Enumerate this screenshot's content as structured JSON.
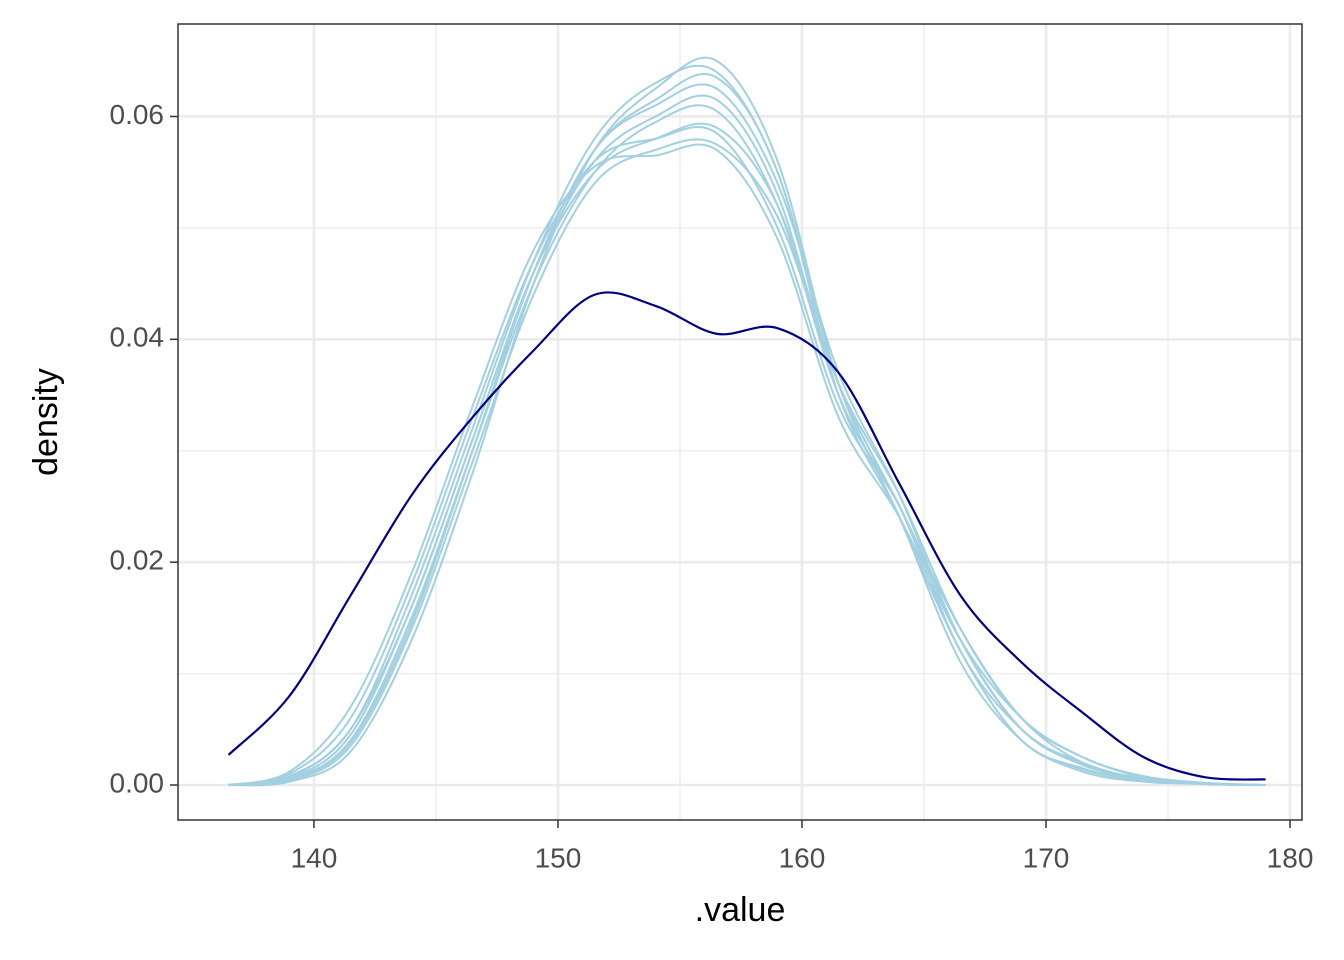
{
  "chart_data": {
    "type": "line",
    "xlabel": ".value",
    "ylabel": "density",
    "x": [
      136.5,
      139,
      141.5,
      144,
      146.5,
      149,
      151.5,
      154,
      156.5,
      159,
      161.5,
      164,
      166.5,
      169,
      171.5,
      174,
      176.5,
      179
    ],
    "series": [
      {
        "color": "#a3d0e1",
        "values": [
          0,
          0.0005,
          0.004,
          0.015,
          0.03,
          0.045,
          0.055,
          0.0595,
          0.0605,
          0.052,
          0.035,
          0.025,
          0.013,
          0.005,
          0.002,
          0.0005,
          0.0001,
          0
        ]
      },
      {
        "color": "#a3d0e1",
        "values": [
          0,
          0.0008,
          0.005,
          0.017,
          0.032,
          0.047,
          0.058,
          0.063,
          0.064,
          0.055,
          0.036,
          0.024,
          0.012,
          0.004,
          0.0015,
          0.0004,
          0.0001,
          0
        ]
      },
      {
        "color": "#a3d0e1",
        "values": [
          0,
          0.0004,
          0.0035,
          0.014,
          0.029,
          0.044,
          0.054,
          0.057,
          0.0575,
          0.051,
          0.036,
          0.026,
          0.014,
          0.006,
          0.0025,
          0.0007,
          0.0001,
          0
        ]
      },
      {
        "color": "#a3d0e1",
        "values": [
          0,
          0.001,
          0.006,
          0.018,
          0.033,
          0.047,
          0.056,
          0.058,
          0.0585,
          0.05,
          0.034,
          0.025,
          0.013,
          0.005,
          0.002,
          0.0005,
          0.0001,
          0
        ]
      },
      {
        "color": "#a3d0e1",
        "values": [
          0,
          0.0003,
          0.003,
          0.013,
          0.028,
          0.045,
          0.057,
          0.0625,
          0.065,
          0.056,
          0.036,
          0.024,
          0.011,
          0.004,
          0.0012,
          0.0003,
          0.0001,
          0
        ]
      },
      {
        "color": "#a3d0e1",
        "values": [
          0,
          0.0006,
          0.0045,
          0.016,
          0.031,
          0.046,
          0.056,
          0.06,
          0.0615,
          0.053,
          0.035,
          0.025,
          0.012,
          0.005,
          0.0018,
          0.0005,
          0.0001,
          0
        ]
      },
      {
        "color": "#a3d0e1",
        "values": [
          0,
          0.0012,
          0.007,
          0.019,
          0.034,
          0.048,
          0.0555,
          0.0565,
          0.057,
          0.049,
          0.033,
          0.024,
          0.013,
          0.006,
          0.0025,
          0.0008,
          0.0002,
          0
        ]
      },
      {
        "color": "#a3d0e1",
        "values": [
          0,
          0.0005,
          0.004,
          0.015,
          0.03,
          0.046,
          0.057,
          0.061,
          0.0625,
          0.054,
          0.037,
          0.026,
          0.013,
          0.005,
          0.0018,
          0.0005,
          0.0001,
          0
        ]
      },
      {
        "color": "#a3d0e1",
        "values": [
          0,
          0.0007,
          0.005,
          0.016,
          0.031,
          0.046,
          0.055,
          0.058,
          0.059,
          0.052,
          0.036,
          0.025,
          0.014,
          0.006,
          0.002,
          0.0006,
          0.0001,
          0
        ]
      },
      {
        "color": "#a3d0e1",
        "values": [
          0,
          0.0004,
          0.0038,
          0.0145,
          0.03,
          0.046,
          0.057,
          0.0615,
          0.0635,
          0.055,
          0.035,
          0.024,
          0.012,
          0.004,
          0.0014,
          0.0004,
          0.0001,
          0
        ]
      },
      {
        "color": "#000080",
        "values": [
          0.0027,
          0.008,
          0.017,
          0.026,
          0.033,
          0.039,
          0.044,
          0.043,
          0.0405,
          0.041,
          0.037,
          0.027,
          0.017,
          0.011,
          0.0065,
          0.0025,
          0.0007,
          0.0005
        ]
      }
    ],
    "xlim": [
      134.43,
      180.49
    ],
    "xticks": [
      140,
      150,
      160,
      170,
      180
    ],
    "ylim": [
      -0.00314,
      0.0683
    ],
    "yticks": [
      {
        "value": 0,
        "label": "0.00"
      },
      {
        "value": 0.02,
        "label": "0.02"
      },
      {
        "value": 0.04,
        "label": "0.04"
      },
      {
        "value": 0.06,
        "label": "0.06"
      }
    ],
    "grid": true,
    "minor_grid": true
  }
}
